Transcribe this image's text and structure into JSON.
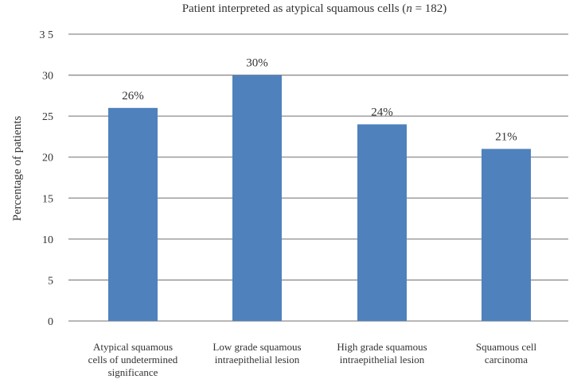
{
  "chart_data": {
    "type": "bar",
    "title_parts": [
      "Patient interpreted as atypical squamous cells (",
      "n",
      " = 182)"
    ],
    "ylabel": "Percentage  of patients",
    "xlabel": "",
    "ylim": [
      0,
      35
    ],
    "yticks": [
      "0",
      "5",
      "10",
      "15",
      "20",
      "25",
      "30",
      "3 5"
    ],
    "grid": true,
    "bar_color": "#4f81bd",
    "categories": [
      [
        "Atypical squamous",
        "cells of undetermined",
        "significance"
      ],
      [
        "Low grade squamous",
        "intraepithelial lesion"
      ],
      [
        "High grade squamous",
        "intraepithelial lesion"
      ],
      [
        "Squamous cell",
        "carcinoma"
      ]
    ],
    "values": [
      26,
      30,
      24,
      21
    ],
    "data_labels": [
      "26%",
      "30%",
      "24%",
      "21%"
    ]
  }
}
